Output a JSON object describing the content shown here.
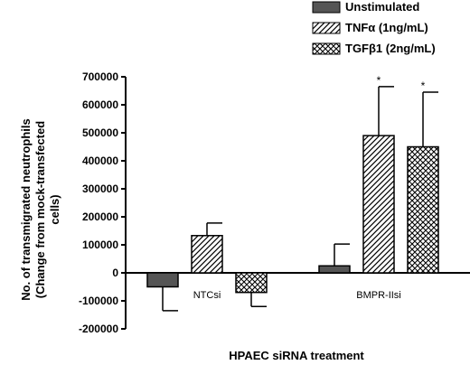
{
  "chart_data": {
    "type": "bar",
    "xlabel": "HPAEC siRNA treatment",
    "ylabel_lines": [
      "No. of transmigrated neutrophils",
      "(Change from mock-transfected",
      "cells)"
    ],
    "ylim": [
      -200000,
      700000
    ],
    "yticks": [
      700000,
      600000,
      500000,
      400000,
      300000,
      200000,
      100000,
      0,
      -100000,
      -200000
    ],
    "ytick_labels": [
      "700000",
      "600000",
      "500000",
      "400000",
      "300000",
      "200000",
      "100000",
      "0",
      "-100000",
      "-200000"
    ],
    "categories": [
      "NTCsi",
      "BMPR-IIsi"
    ],
    "legend_position": "top-right",
    "series": [
      {
        "name": "Unstimulated",
        "pattern": "solid",
        "color": "#555555",
        "values": [
          -50000,
          25000
        ],
        "errors": [
          85000,
          78000
        ],
        "annotations": [
          "",
          ""
        ]
      },
      {
        "name": "TNFα (1ng/mL)",
        "pattern": "diagonal",
        "color": "#000000",
        "values": [
          133000,
          490000
        ],
        "errors": [
          45000,
          175000
        ],
        "annotations": [
          "",
          "*"
        ]
      },
      {
        "name": "TGFβ1 (2ng/mL)",
        "pattern": "crosshatch",
        "color": "#000000",
        "values": [
          -70000,
          450000
        ],
        "errors": [
          50000,
          195000
        ],
        "annotations": [
          "",
          "*"
        ]
      }
    ]
  }
}
